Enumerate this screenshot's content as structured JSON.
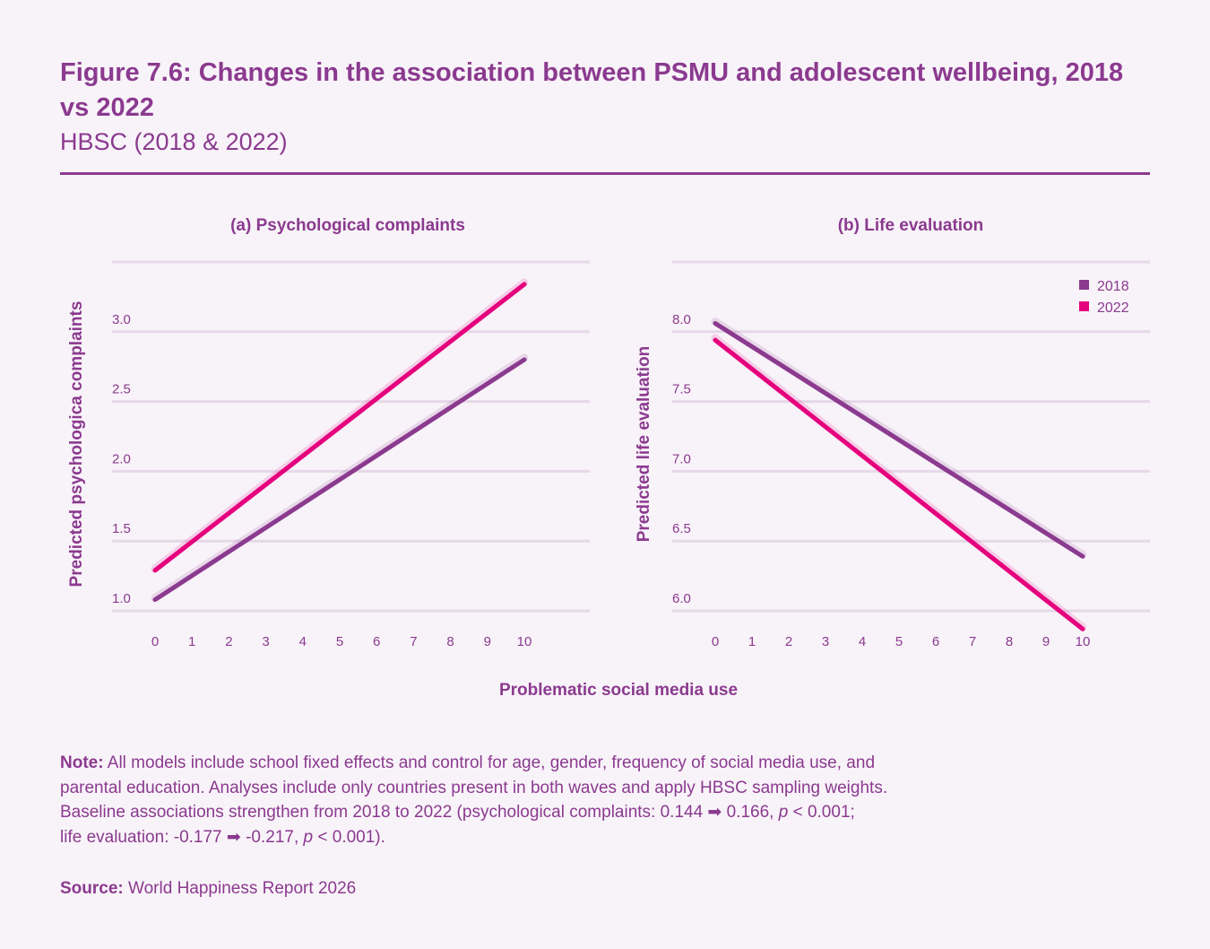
{
  "header": {
    "title": "Figure 7.6: Changes in the association between PSMU and adolescent wellbeing, 2018 vs 2022",
    "subtitle": "HBSC (2018 & 2022)"
  },
  "colors": {
    "text": "#8B3A8F",
    "series_2018": "#8B3A8F",
    "series_2022": "#E5007D",
    "grid": "#E6D8E8",
    "background": "#F8F3F9"
  },
  "chart_data": [
    {
      "type": "line",
      "title": "(a) Psychological complaints",
      "xlabel": "Problematic social media use",
      "ylabel": "Predicted psychologica complaints",
      "x_ticks": [
        "0",
        "1",
        "2",
        "3",
        "4",
        "5",
        "6",
        "7",
        "8",
        "9",
        "10"
      ],
      "xlim": [
        0,
        10
      ],
      "y_ticks": [
        "1.0",
        "1.5",
        "2.0",
        "2.5",
        "3.0"
      ],
      "ylim": [
        1.0,
        3.5
      ],
      "grid": true,
      "series": [
        {
          "name": "2018",
          "x": [
            0,
            10
          ],
          "y": [
            1.08,
            2.8
          ]
        },
        {
          "name": "2022",
          "x": [
            0,
            10
          ],
          "y": [
            1.29,
            3.34
          ]
        }
      ]
    },
    {
      "type": "line",
      "title": "(b) Life evaluation",
      "xlabel": "Problematic social media use",
      "ylabel": "Predicted life evaluation",
      "x_ticks": [
        "0",
        "1",
        "2",
        "3",
        "4",
        "5",
        "6",
        "7",
        "8",
        "9",
        "10"
      ],
      "xlim": [
        0,
        10
      ],
      "y_ticks": [
        "6.0",
        "6.5",
        "7.0",
        "7.5",
        "8.0"
      ],
      "ylim": [
        6.0,
        8.5
      ],
      "grid": true,
      "legend": {
        "position": "top-right",
        "entries": [
          "2018",
          "2022"
        ]
      },
      "series": [
        {
          "name": "2018",
          "x": [
            0,
            10
          ],
          "y": [
            8.06,
            6.39
          ]
        },
        {
          "name": "2022",
          "x": [
            0,
            10
          ],
          "y": [
            7.94,
            5.87
          ]
        }
      ]
    }
  ],
  "shared_xlabel": "Problematic social media use",
  "note": {
    "label": "Note:",
    "line1": " All models include school fixed effects and control for age, gender, frequency of social media use, and",
    "line2": "parental education. Analyses include only countries present in both waves and apply HBSC sampling weights.",
    "line3a": "Baseline associations strengthen from 2018 to 2022 (psychological complaints: 0.144 ➡ 0.166, ",
    "line3p": "p",
    "line3b": " < 0.001;",
    "line4a": "life evaluation: -0.177 ➡ -0.217, ",
    "line4p": "p",
    "line4b": " < 0.001)."
  },
  "source": {
    "label": "Source:",
    "text": " World Happiness Report 2026"
  }
}
